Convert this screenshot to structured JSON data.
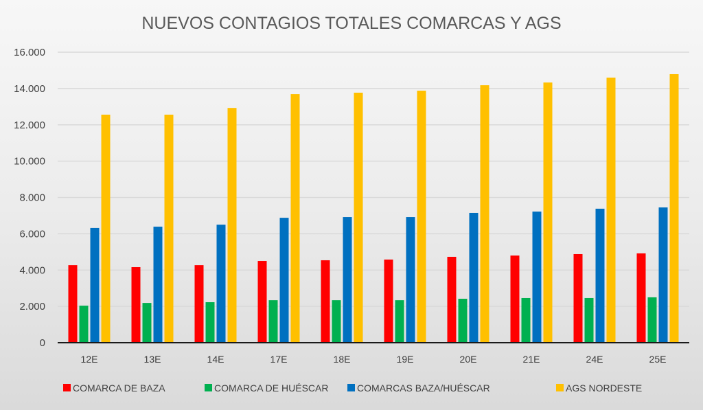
{
  "chart_data": {
    "type": "bar",
    "title": "NUEVOS CONTAGIOS TOTALES COMARCAS Y AGS",
    "xlabel": "",
    "ylabel": "",
    "ylim": [
      0,
      16000
    ],
    "yticks": [
      0,
      2000,
      4000,
      6000,
      8000,
      10000,
      12000,
      14000,
      16000
    ],
    "ytick_labels": [
      "0",
      "2.000",
      "4.000",
      "6.000",
      "8.000",
      "10.000",
      "12.000",
      "14.000",
      "16.000"
    ],
    "grid": true,
    "legend_position": "bottom",
    "categories": [
      "12E",
      "13E",
      "14E",
      "17E",
      "18E",
      "19E",
      "20E",
      "21E",
      "24E",
      "25E"
    ],
    "series": [
      {
        "name": "COMARCA DE BAZA",
        "color": "#ff0000",
        "values": [
          4270,
          4160,
          4270,
          4500,
          4540,
          4580,
          4730,
          4800,
          4880,
          4920
        ]
      },
      {
        "name": "COMARCA DE HUÉSCAR",
        "color": "#00b050",
        "values": [
          2040,
          2190,
          2230,
          2340,
          2340,
          2340,
          2420,
          2460,
          2460,
          2500
        ]
      },
      {
        "name": "COMARCAS BAZA/HUÉSCAR",
        "color": "#0070c0",
        "values": [
          6320,
          6390,
          6500,
          6880,
          6920,
          6920,
          7150,
          7220,
          7380,
          7450
        ]
      },
      {
        "name": "AGS NORDESTE",
        "color": "#ffc000",
        "values": [
          12560,
          12560,
          12930,
          13690,
          13770,
          13880,
          14180,
          14330,
          14600,
          14790
        ]
      }
    ]
  }
}
